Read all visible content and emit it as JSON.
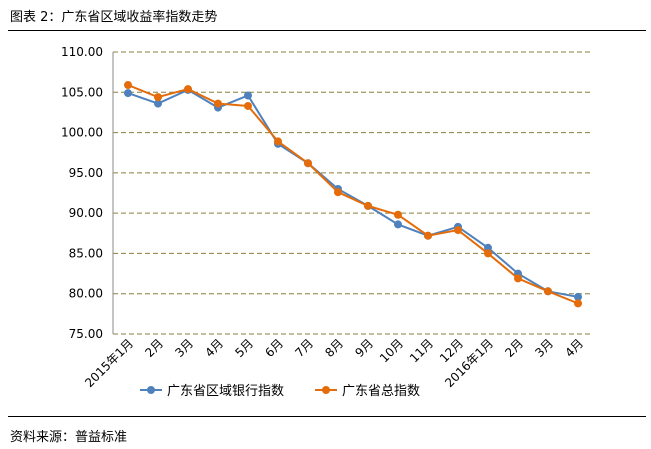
{
  "title": "图表 2：广东省区域收益率指数走势",
  "source": "资料来源：普益标准",
  "chart_data": {
    "type": "line",
    "title": "图表 2：广东省区域收益率指数走势",
    "xlabel": "",
    "ylabel": "",
    "categories": [
      "2015年1月",
      "2月",
      "3月",
      "4月",
      "5月",
      "6月",
      "7月",
      "8月",
      "9月",
      "10月",
      "11月",
      "12月",
      "2016年1月",
      "2月",
      "3月",
      "4月"
    ],
    "ylim": [
      75,
      110
    ],
    "yticks": [
      "75.00",
      "80.00",
      "85.00",
      "90.00",
      "95.00",
      "100.00",
      "105.00",
      "110.00"
    ],
    "grid": true,
    "legend": "bottom",
    "series": [
      {
        "name": "广东省区域银行指数",
        "color": "#4f81bd",
        "values": [
          104.9,
          103.6,
          105.3,
          103.1,
          104.6,
          98.6,
          96.2,
          93.0,
          90.9,
          88.6,
          87.2,
          88.3,
          85.7,
          82.5,
          80.3,
          79.6
        ]
      },
      {
        "name": "广东省总指数",
        "color": "#e46c0a",
        "values": [
          105.9,
          104.4,
          105.4,
          103.6,
          103.3,
          98.9,
          96.2,
          92.6,
          90.9,
          89.8,
          87.2,
          87.9,
          85.0,
          81.9,
          80.3,
          78.8
        ]
      }
    ]
  }
}
